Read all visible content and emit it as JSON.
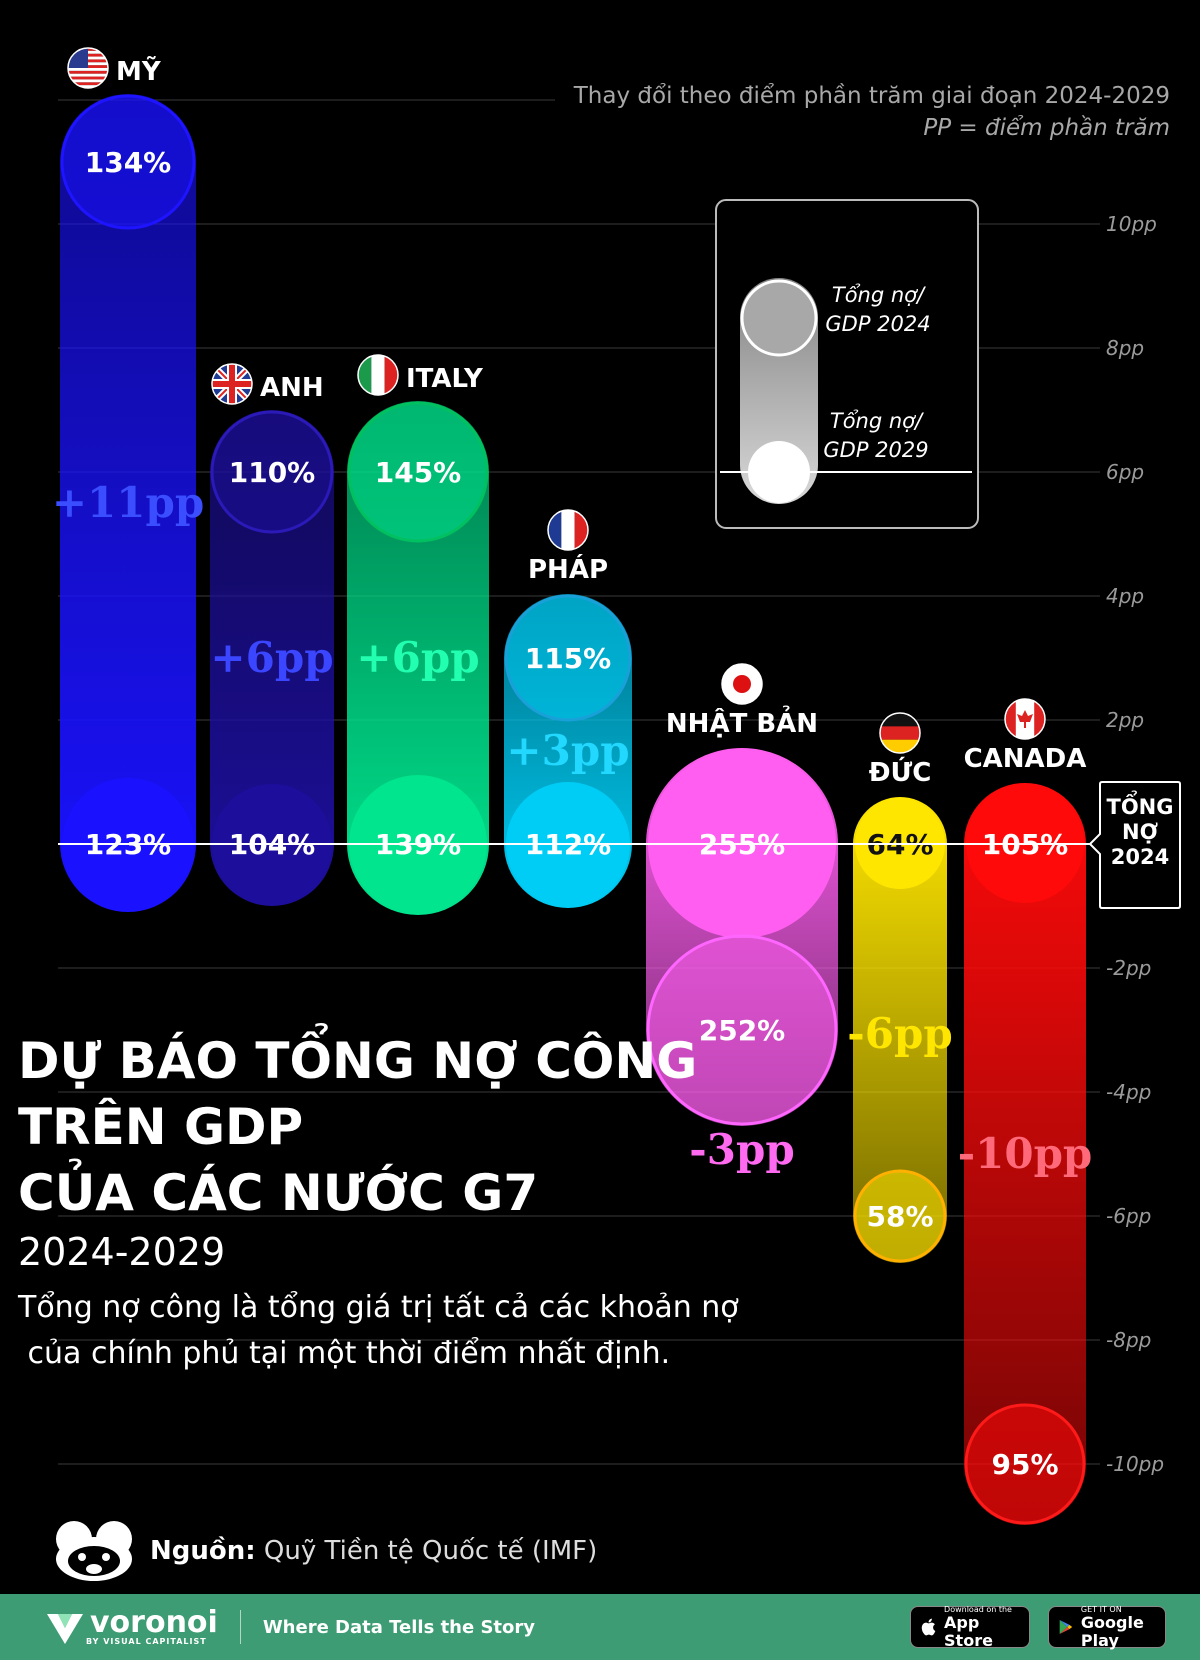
{
  "note": {
    "line1": "Thay đổi theo điểm phần trăm giai đoạn 2024-2029",
    "line2": "PP = điểm phần trăm"
  },
  "legend": {
    "label_2024": "Tổng nợ/\nGDP 2024",
    "label_2029": "Tổng nợ/\nGDP 2029"
  },
  "baseline_label": "TỔNG\nNỢ\n2024",
  "title": {
    "line1": "DỰ BÁO TỔNG NỢ CÔNG",
    "line2": "TRÊN GDP",
    "line3": "CỦA CÁC NƯỚC G7",
    "years": "2024-2029",
    "description_line1": "Tổng nợ công là tổng giá trị tất cả các khoản nợ",
    "description_line2": " của chính phủ tại một thời điểm nhất định."
  },
  "source": {
    "label": "Nguồn:",
    "text": " Quỹ Tiền tệ Quốc tế (IMF)"
  },
  "footer": {
    "brand": "voronoi",
    "brand_sub": "BY VISUAL CAPITALIST",
    "tagline": "Where Data Tells the Story",
    "appstore_small": "Download on the",
    "appstore_large": "App Store",
    "googleplay_small": "GET IT ON",
    "googleplay_large": "Google Play"
  },
  "chart_data": {
    "type": "bar",
    "unit": "pp",
    "axis_ticks": [
      "10pp",
      "8pp",
      "6pp",
      "4pp",
      "2pp",
      "-2pp",
      "-4pp",
      "-6pp",
      "-8pp",
      "-10pp"
    ],
    "ylim": [
      -10,
      12
    ],
    "categories": [
      "MỸ",
      "ANH",
      "ITALY",
      "PHÁP",
      "NHẬT BẢN",
      "ĐỨC",
      "CANADA"
    ],
    "debt_2024": [
      "123%",
      "104%",
      "139%",
      "112%",
      "255%",
      "64%",
      "105%"
    ],
    "debt_2029": [
      "134%",
      "110%",
      "145%",
      "115%",
      "252%",
      "58%",
      "95%"
    ],
    "change_pp": [
      11,
      6,
      6,
      3,
      -3,
      -6,
      -10
    ],
    "change_labels": [
      "+11pp",
      "+6pp",
      "+6pp",
      "+3pp",
      "-3pp",
      "-6pp",
      "-10pp"
    ],
    "colors": [
      "#1a12ff",
      "#1d0f9c",
      "#00e58e",
      "#00cdf5",
      "#ff5ef0",
      "#ffe600",
      "#ff0a0a"
    ],
    "ring_colors": [
      "#1e14ff",
      "#2b1ab8",
      "#00c060",
      "#1aa0d8",
      "#ff66ff",
      "#ffb000",
      "#ff1a1a"
    ],
    "change_label_colors": [
      "#3a4dff",
      "#3a46ff",
      "#22ffb0",
      "#22d8ff",
      "#ff6af0",
      "#ffe600",
      "#ff6a7a"
    ],
    "flags": [
      "us",
      "uk",
      "it",
      "fr",
      "jp",
      "de",
      "ca"
    ]
  }
}
